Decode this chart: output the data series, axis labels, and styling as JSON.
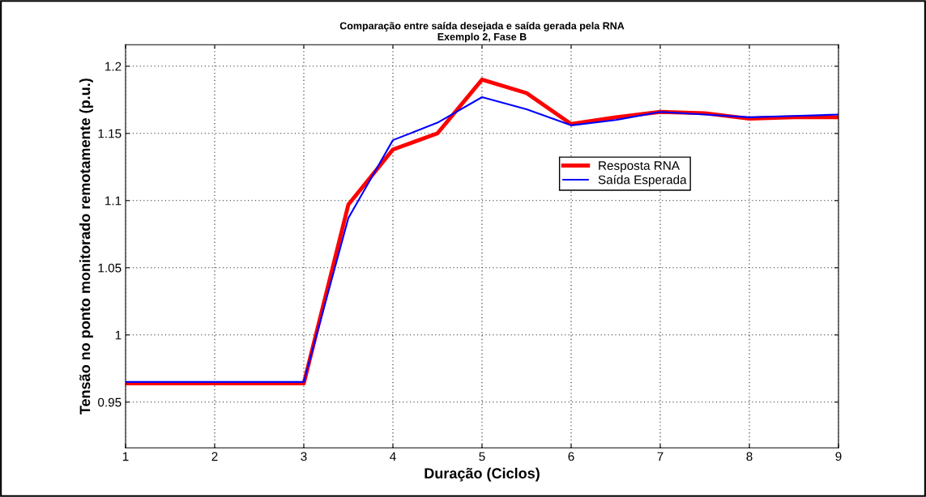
{
  "chart_data": {
    "type": "line",
    "title": "Comparação entre saída desejada e saída gerada pela RNA\nExemplo 2, Fase B",
    "xlabel": "Duração (Ciclos)",
    "ylabel": "Tensão no ponto monitorado remotamente (p.u.)",
    "x": [
      1,
      1.5,
      2,
      2.5,
      3,
      3.5,
      4,
      4.5,
      5,
      5.5,
      6,
      6.5,
      7,
      7.5,
      8,
      8.5,
      9
    ],
    "series": [
      {
        "name": "Resposta RNA",
        "color": "#ff0000",
        "values": [
          0.964,
          0.964,
          0.964,
          0.964,
          0.964,
          1.097,
          1.138,
          1.15,
          1.19,
          1.18,
          1.157,
          1.162,
          1.166,
          1.165,
          1.161,
          1.162,
          1.162
        ]
      },
      {
        "name": "Saída Esperada",
        "color": "#0000ff",
        "values": [
          0.965,
          0.965,
          0.965,
          0.965,
          0.965,
          1.087,
          1.145,
          1.158,
          1.177,
          1.168,
          1.156,
          1.16,
          1.166,
          1.164,
          1.162,
          1.163,
          1.164
        ]
      }
    ],
    "xlim": [
      1,
      9
    ],
    "xticks": [
      1,
      2,
      3,
      4,
      5,
      6,
      7,
      8,
      9
    ],
    "ylim": [
      0.916,
      1.216
    ],
    "yticks": [
      0.95,
      1,
      1.05,
      1.1,
      1.15,
      1.2
    ],
    "grid": true,
    "legend": "right",
    "line_style": "solid",
    "marker": "none"
  }
}
